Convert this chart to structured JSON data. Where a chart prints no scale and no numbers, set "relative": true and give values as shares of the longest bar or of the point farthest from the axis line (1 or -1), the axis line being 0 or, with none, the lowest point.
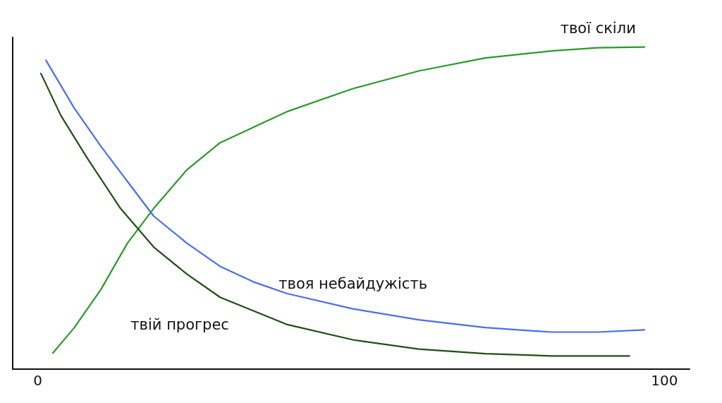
{
  "chart_data": {
    "type": "line",
    "relative": true,
    "xlim": [
      -4,
      104
    ],
    "xticks": [
      0,
      100
    ],
    "grid": false,
    "marker": "none",
    "line_style": "solid",
    "series": [
      {
        "name": "твої скіли",
        "color": "#2a9a2a",
        "x": [
          2.4,
          5.8,
          10.1,
          14.3,
          18.5,
          23.8,
          29.1,
          39.7,
          50.3,
          60.8,
          71.4,
          82.0,
          89.4,
          96.8
        ],
        "values": [
          0.05,
          0.128,
          0.248,
          0.391,
          0.499,
          0.619,
          0.703,
          0.799,
          0.871,
          0.926,
          0.966,
          0.988,
          0.998,
          1
        ]
      },
      {
        "name": "твоя небайдужість",
        "color": "#4a6cf0",
        "x": [
          1.3,
          5.8,
          10.1,
          14.3,
          18.5,
          23.8,
          29.1,
          34.4,
          39.7,
          50.3,
          60.8,
          71.4,
          82.0,
          89.4,
          96.8
        ],
        "values": [
          0.959,
          0.811,
          0.691,
          0.583,
          0.475,
          0.391,
          0.319,
          0.271,
          0.235,
          0.187,
          0.153,
          0.129,
          0.115,
          0.115,
          0.122
        ]
      },
      {
        "name": "твій прогрес",
        "color": "#1f4f12",
        "x": [
          0.5,
          3.7,
          7.9,
          13.2,
          18.5,
          23.8,
          29.1,
          39.7,
          50.3,
          60.8,
          71.4,
          82.0,
          94.4
        ],
        "values": [
          0.918,
          0.787,
          0.655,
          0.499,
          0.379,
          0.295,
          0.223,
          0.139,
          0.091,
          0.062,
          0.048,
          0.041,
          0.041
        ]
      }
    ]
  }
}
